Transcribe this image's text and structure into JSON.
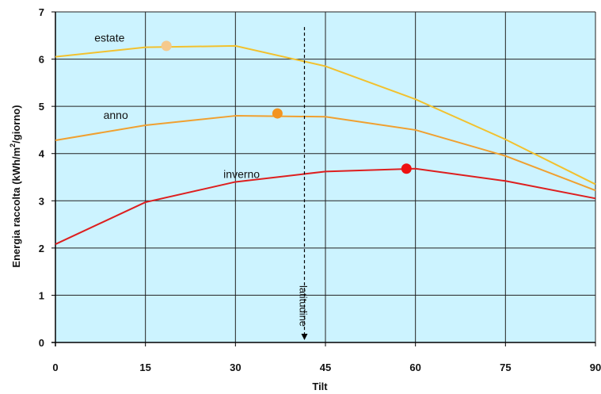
{
  "chart_data": {
    "type": "line",
    "xlabel": "Tilt",
    "ylabel": "Energia raccolta (kWh/m",
    "ylabel_sup": "2",
    "ylabel_tail": "/giorno)",
    "xlim": [
      0,
      90
    ],
    "ylim": [
      0,
      7
    ],
    "xticks": [
      0,
      15,
      30,
      45,
      60,
      75,
      90
    ],
    "yticks": [
      0,
      1,
      2,
      3,
      4,
      5,
      6,
      7
    ],
    "grid": true,
    "plot_background": "#ccf3ff",
    "series": [
      {
        "name": "estate",
        "color": "#f2c12e",
        "marker_color": "#f5c98c",
        "x": [
          0,
          15,
          30,
          45,
          60,
          75,
          90
        ],
        "values": [
          6.05,
          6.25,
          6.28,
          5.85,
          5.15,
          4.3,
          3.35
        ],
        "optimum": {
          "x": 18.5,
          "y": 6.28
        }
      },
      {
        "name": "anno",
        "color": "#f0a030",
        "marker_color": "#f39420",
        "x": [
          0,
          15,
          30,
          45,
          60,
          75,
          90
        ],
        "values": [
          4.28,
          4.6,
          4.8,
          4.78,
          4.5,
          3.95,
          3.22
        ],
        "optimum": {
          "x": 37,
          "y": 4.85
        }
      },
      {
        "name": "inverno",
        "color": "#dd1f1f",
        "marker_color": "#ee1111",
        "x": [
          0,
          15,
          30,
          45,
          60,
          75,
          90
        ],
        "values": [
          2.08,
          2.97,
          3.4,
          3.62,
          3.68,
          3.42,
          3.05
        ],
        "optimum": {
          "x": 58.5,
          "y": 3.68
        }
      }
    ],
    "annotations": [
      {
        "text": "latitudine",
        "x": 41.5,
        "line_from": 6.68,
        "line_to": 0.05
      }
    ]
  }
}
